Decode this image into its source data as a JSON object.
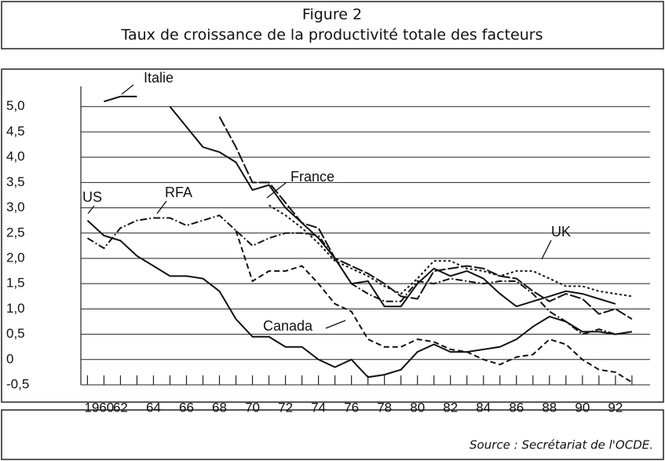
{
  "chart_data": {
    "type": "line",
    "title": "Figure 2",
    "subtitle": "Taux de croissance de la productivité totale des facteurs",
    "source": "Source : Secrétariat de l'OCDE.",
    "x": [
      1960,
      1961,
      1962,
      1963,
      1964,
      1965,
      1966,
      1967,
      1968,
      1969,
      1970,
      1971,
      1972,
      1973,
      1974,
      1975,
      1976,
      1977,
      1978,
      1979,
      1980,
      1981,
      1982,
      1983,
      1984,
      1985,
      1986,
      1987,
      1988,
      1989,
      1990,
      1991,
      1992,
      1993
    ],
    "series": [
      {
        "name": "Italie",
        "color": "#111111",
        "dash": "none",
        "values": [
          null,
          5.1,
          5.2,
          5.2,
          null,
          5.0,
          4.6,
          4.2,
          4.1,
          3.9,
          3.35,
          3.45,
          3.0,
          2.7,
          2.4,
          2.0,
          1.5,
          1.55,
          1.05,
          1.05,
          1.5,
          1.8,
          1.65,
          1.75,
          1.6,
          1.3,
          1.05,
          1.15,
          1.25,
          1.35,
          1.3,
          1.2,
          1.1,
          null
        ]
      },
      {
        "name": "France",
        "color": "#111111",
        "dash": "14,3",
        "values": [
          null,
          null,
          null,
          null,
          null,
          null,
          null,
          null,
          4.8,
          4.2,
          3.5,
          3.5,
          3.1,
          2.7,
          2.6,
          2.0,
          1.85,
          1.7,
          1.5,
          1.25,
          1.2,
          1.75,
          1.8,
          1.85,
          1.8,
          1.65,
          1.6,
          1.35,
          1.15,
          1.3,
          1.2,
          0.9,
          1.0,
          0.8
        ]
      },
      {
        "name": "UK",
        "color": "#111111",
        "dash": "3,3",
        "values": [
          null,
          null,
          null,
          null,
          null,
          null,
          null,
          null,
          null,
          null,
          null,
          3.05,
          2.85,
          2.6,
          2.3,
          1.95,
          1.8,
          1.65,
          1.45,
          1.3,
          1.6,
          1.95,
          1.95,
          1.8,
          1.75,
          1.65,
          1.75,
          1.75,
          1.6,
          1.45,
          1.45,
          1.35,
          1.3,
          1.25
        ]
      },
      {
        "name": "RFA",
        "color": "#111111",
        "dash": "9,3,2,3",
        "values": [
          2.4,
          2.2,
          2.6,
          2.75,
          2.8,
          2.8,
          2.65,
          2.75,
          2.85,
          2.55,
          2.25,
          2.4,
          2.5,
          2.5,
          2.45,
          2.0,
          1.5,
          1.3,
          1.15,
          1.15,
          1.55,
          1.5,
          1.6,
          1.55,
          1.5,
          1.55,
          1.55,
          1.3,
          0.95,
          0.75,
          0.5,
          0.6,
          0.5,
          0.55
        ]
      },
      {
        "name": "US",
        "color": "#111111",
        "dash": "none",
        "values": [
          2.75,
          2.45,
          2.35,
          2.05,
          1.85,
          1.65,
          1.65,
          1.6,
          1.35,
          0.8,
          0.45,
          0.45,
          0.25,
          0.25,
          0.0,
          -0.15,
          0.0,
          -0.35,
          -0.3,
          -0.2,
          0.15,
          0.3,
          0.15,
          0.15,
          0.2,
          0.25,
          0.4,
          0.65,
          0.85,
          0.75,
          0.55,
          0.55,
          0.5,
          0.55
        ]
      },
      {
        "name": "Canada",
        "color": "#111111",
        "dash": "7,4",
        "values": [
          null,
          null,
          null,
          null,
          null,
          null,
          null,
          null,
          null,
          2.55,
          1.55,
          1.75,
          1.75,
          1.85,
          1.5,
          1.1,
          0.95,
          0.4,
          0.25,
          0.25,
          0.4,
          0.35,
          0.2,
          0.15,
          0.0,
          -0.1,
          0.05,
          0.1,
          0.4,
          0.3,
          0.0,
          -0.2,
          -0.25,
          -0.45
        ]
      }
    ],
    "xlim": [
      1959.6,
      1994.1
    ],
    "xticks": [
      1960,
      {
        "value": 1962,
        "label": "62"
      },
      {
        "value": 1964,
        "label": "64"
      },
      {
        "value": 1966,
        "label": "66"
      },
      {
        "value": 1968,
        "label": "68"
      },
      {
        "value": 1970,
        "label": "70"
      },
      {
        "value": 1972,
        "label": "72"
      },
      {
        "value": 1974,
        "label": "74"
      },
      {
        "value": 1976,
        "label": "76"
      },
      {
        "value": 1978,
        "label": "78"
      },
      {
        "value": 1980,
        "label": "80"
      },
      {
        "value": 1982,
        "label": "82"
      },
      {
        "value": 1984,
        "label": "84"
      },
      {
        "value": 1986,
        "label": "86"
      },
      {
        "value": 1988,
        "label": "88"
      },
      {
        "value": 1990,
        "label": "90"
      },
      {
        "value": 1992,
        "label": "92"
      }
    ],
    "xminor_ticks": [
      1961,
      1963,
      1965,
      1967,
      1969,
      1971,
      1973,
      1975,
      1977,
      1979,
      1981,
      1983,
      1985,
      1987,
      1989,
      1991,
      1993
    ],
    "ylim": [
      -0.5,
      5.4
    ],
    "yticks": [
      {
        "value": -0.5,
        "label": "-0,5"
      },
      0,
      {
        "value": 0.5,
        "label": "0,5"
      },
      {
        "value": 1,
        "label": "1,0"
      },
      {
        "value": 1.5,
        "label": "1,5"
      },
      {
        "value": 2,
        "label": "2,0"
      },
      {
        "value": 2.5,
        "label": "2,5"
      },
      {
        "value": 3,
        "label": "3,0"
      },
      {
        "value": 3.5,
        "label": "3,5"
      },
      {
        "value": 4,
        "label": "4,0"
      },
      {
        "value": 4.5,
        "label": "4,5"
      },
      {
        "value": 5,
        "label": "5,0"
      }
    ],
    "grid": true
  }
}
